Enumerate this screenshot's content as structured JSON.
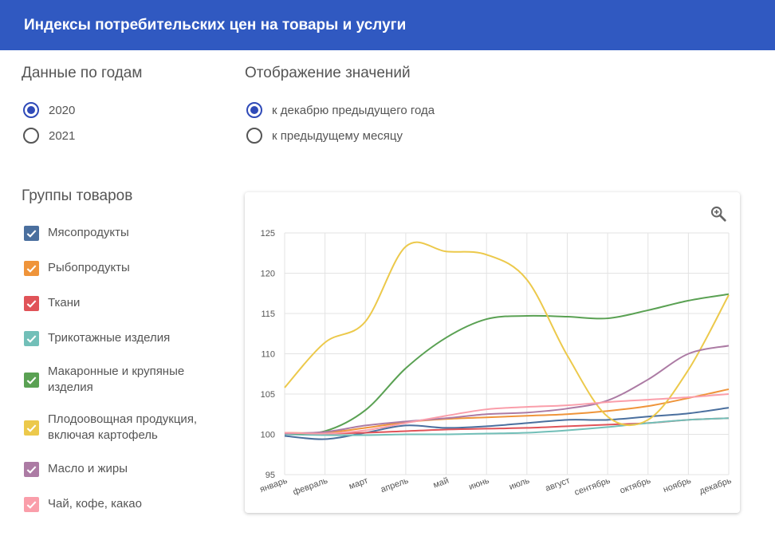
{
  "header": {
    "title": "Индексы потребительских цен на товары и услуги"
  },
  "years": {
    "title": "Данные по годам",
    "options": [
      {
        "label": "2020",
        "checked": true
      },
      {
        "label": "2021",
        "checked": false
      }
    ]
  },
  "display": {
    "title": "Отображение значений",
    "options": [
      {
        "label": "к декабрю предыдущего года",
        "checked": true
      },
      {
        "label": "к предыдущему месяцу",
        "checked": false
      }
    ]
  },
  "groups": {
    "title": "Группы товаров",
    "items": [
      {
        "label": "Мясопродукты",
        "color": "#4a6f9e",
        "checked": true
      },
      {
        "label": "Рыбопродукты",
        "color": "#ef943a",
        "checked": true
      },
      {
        "label": "Ткани",
        "color": "#e05358",
        "checked": true
      },
      {
        "label": "Трикотажные изделия",
        "color": "#72bfb8",
        "checked": true
      },
      {
        "label": "Макаронные и крупяные изделия",
        "color": "#5aa153",
        "checked": true
      },
      {
        "label": "Плодоовощная продукция, включая картофель",
        "color": "#ecc94b",
        "checked": true
      },
      {
        "label": "Масло и жиры",
        "color": "#ac7ba4",
        "checked": true
      },
      {
        "label": "Чай, кофе, какао",
        "color": "#fa9eaa",
        "checked": true
      }
    ]
  },
  "toolbar": {
    "zoom_icon": "zoom-in-icon"
  },
  "chart_data": {
    "type": "line",
    "categories": [
      "январь",
      "февраль",
      "март",
      "апрель",
      "май",
      "июнь",
      "июль",
      "август",
      "сентябрь",
      "октябрь",
      "ноябрь",
      "декабрь"
    ],
    "ylim": [
      95,
      125
    ],
    "yticks": [
      95,
      100,
      105,
      110,
      115,
      120,
      125
    ],
    "grid": true,
    "series": [
      {
        "name": "Мясопродукты",
        "color": "#4a6f9e",
        "values": [
          99.8,
          99.4,
          100.2,
          101.1,
          100.8,
          101.0,
          101.4,
          101.8,
          101.8,
          102.2,
          102.6,
          103.3
        ]
      },
      {
        "name": "Рыбопродукты",
        "color": "#ef943a",
        "values": [
          100.2,
          100.2,
          100.8,
          101.5,
          101.9,
          102.1,
          102.3,
          102.5,
          102.9,
          103.5,
          104.5,
          105.6
        ]
      },
      {
        "name": "Ткани",
        "color": "#e05358",
        "values": [
          100.1,
          100.1,
          100.2,
          100.4,
          100.6,
          100.7,
          100.8,
          101.0,
          101.2,
          101.4,
          101.8,
          102.0
        ]
      },
      {
        "name": "Трикотажные изделия",
        "color": "#72bfb8",
        "values": [
          100.0,
          99.9,
          99.9,
          100.0,
          100.0,
          100.1,
          100.2,
          100.5,
          100.9,
          101.4,
          101.8,
          102.0
        ]
      },
      {
        "name": "Макаронные и крупяные изделия",
        "color": "#5aa153",
        "values": [
          100.1,
          100.4,
          103.0,
          108.2,
          112.0,
          114.3,
          114.7,
          114.6,
          114.4,
          115.4,
          116.6,
          117.4
        ]
      },
      {
        "name": "Плодоовощная продукция, включая картофель",
        "color": "#ecc94b",
        "values": [
          105.8,
          111.4,
          114.0,
          123.3,
          122.7,
          122.3,
          119.2,
          109.8,
          102.2,
          101.8,
          108.0,
          117.3
        ]
      },
      {
        "name": "Масло и жиры",
        "color": "#ac7ba4",
        "values": [
          100.1,
          100.3,
          101.1,
          101.6,
          102.0,
          102.5,
          102.7,
          103.2,
          104.2,
          106.8,
          110.0,
          111.0
        ]
      },
      {
        "name": "Чай, кофе, какао",
        "color": "#fa9eaa",
        "values": [
          100.2,
          100.1,
          100.5,
          101.4,
          102.3,
          103.1,
          103.4,
          103.6,
          104.0,
          104.3,
          104.6,
          105.0
        ]
      }
    ]
  }
}
